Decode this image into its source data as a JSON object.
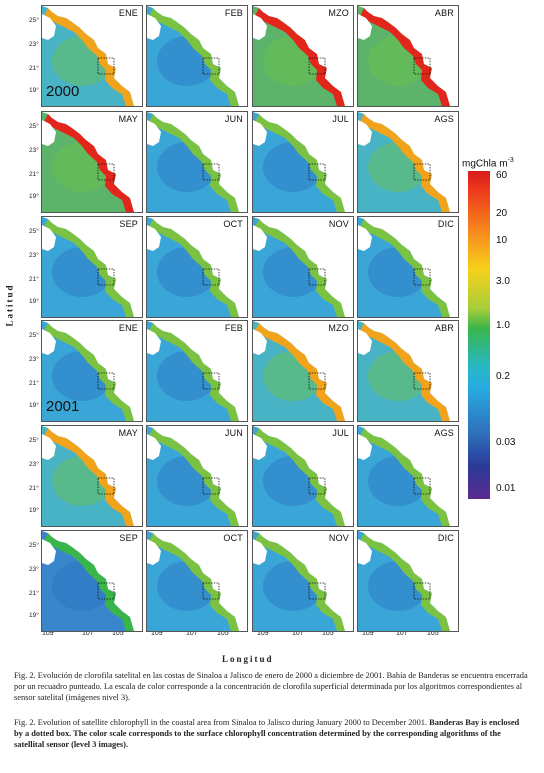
{
  "figure": {
    "years": {
      "2000": "2000",
      "2001": "2001"
    },
    "rows": [
      {
        "months": [
          "ENE",
          "FEB",
          "MZO",
          "ABR"
        ],
        "year_label": "2000"
      },
      {
        "months": [
          "MAY",
          "JUN",
          "JUL",
          "AGS"
        ],
        "year_label": ""
      },
      {
        "months": [
          "SEP",
          "OCT",
          "NOV",
          "DIC"
        ],
        "year_label": ""
      },
      {
        "months": [
          "ENE",
          "FEB",
          "MZO",
          "ABR"
        ],
        "year_label": "2001"
      },
      {
        "months": [
          "MAY",
          "JUN",
          "JUL",
          "AGS"
        ],
        "year_label": ""
      },
      {
        "months": [
          "SEP",
          "OCT",
          "NOV",
          "DIC"
        ],
        "year_label": ""
      }
    ],
    "lat_ticks": [
      "25°",
      "23°",
      "21°",
      "19°"
    ],
    "lon_ticks": [
      "109°",
      "107°",
      "105°"
    ],
    "y_axis_label": "Latitud",
    "x_axis_label": "Longitud",
    "colorbar": {
      "title": "mgChla m-3",
      "ticks": [
        "60",
        "20",
        "10",
        "3.0",
        "1.0",
        "0.2",
        "0.03",
        "0.01"
      ]
    }
  },
  "caption": {
    "es": "Fig. 2. Evolución de clorofila satelital en las costas de Sinaloa a Jalisco de enero de 2000 a diciembre de 2001. Bahía de Banderas se encuentra encerrada por un recuadro punteado. La escala de color corresponde a la concentración de clorofila superficial determinada por los algoritmos correspondientes al sensor satelital (imágenes nivel 3).",
    "en_plain": "Fig. 2. Evolution of satellite chlorophyll in the coastal area from Sinaloa to Jalisco during January 2000 to December 2001.",
    "en_bold": "Banderas Bay is enclosed by a dotted box. The color scale corresponds to the surface chlorophyll concentration determined by the corresponding algorithms of the satellital sensor (level 3 images)."
  },
  "colors": {
    "ocean_low": "#2f7fc8",
    "ocean_mid": "#38b6d6",
    "coast_green": "#4cb848",
    "coast_high": "#e8261c",
    "land": "#ffffff"
  }
}
